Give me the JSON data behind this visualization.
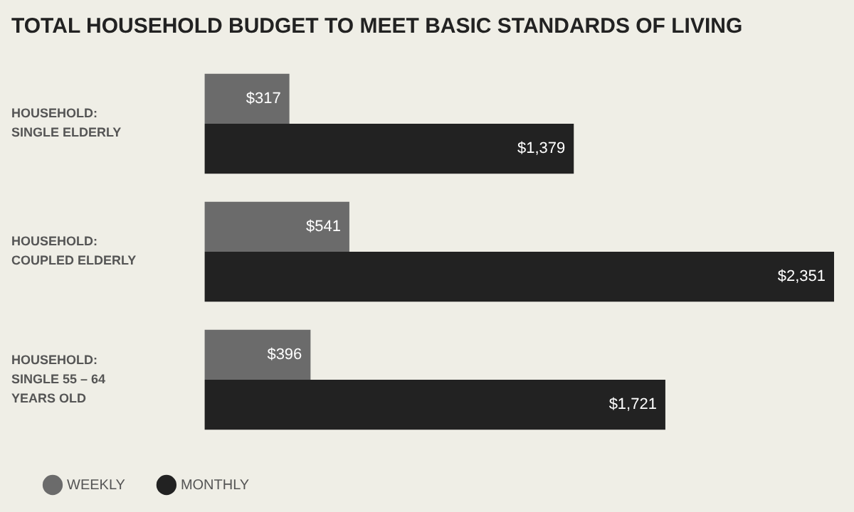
{
  "chart_data": {
    "type": "bar",
    "orientation": "horizontal",
    "title": "TOTAL HOUSEHOLD BUDGET TO MEET BASIC STANDARDS OF LIVING",
    "categories": [
      "HOUSEHOLD: SINGLE ELDERLY",
      "HOUSEHOLD: COUPLED ELDERLY",
      "HOUSEHOLD: SINGLE 55 – 64 YEARS OLD"
    ],
    "series": [
      {
        "name": "WEEKLY",
        "color": "#6b6b6b",
        "values": [
          317,
          541,
          396
        ],
        "value_labels": [
          "$317",
          "$541",
          "$396"
        ]
      },
      {
        "name": "MONTHLY",
        "color": "#222222",
        "values": [
          1379,
          2351,
          1721
        ],
        "value_labels": [
          "$1,379",
          "$2,351",
          "$1,721"
        ]
      }
    ],
    "legend": "bottom",
    "marker": "circle"
  }
}
